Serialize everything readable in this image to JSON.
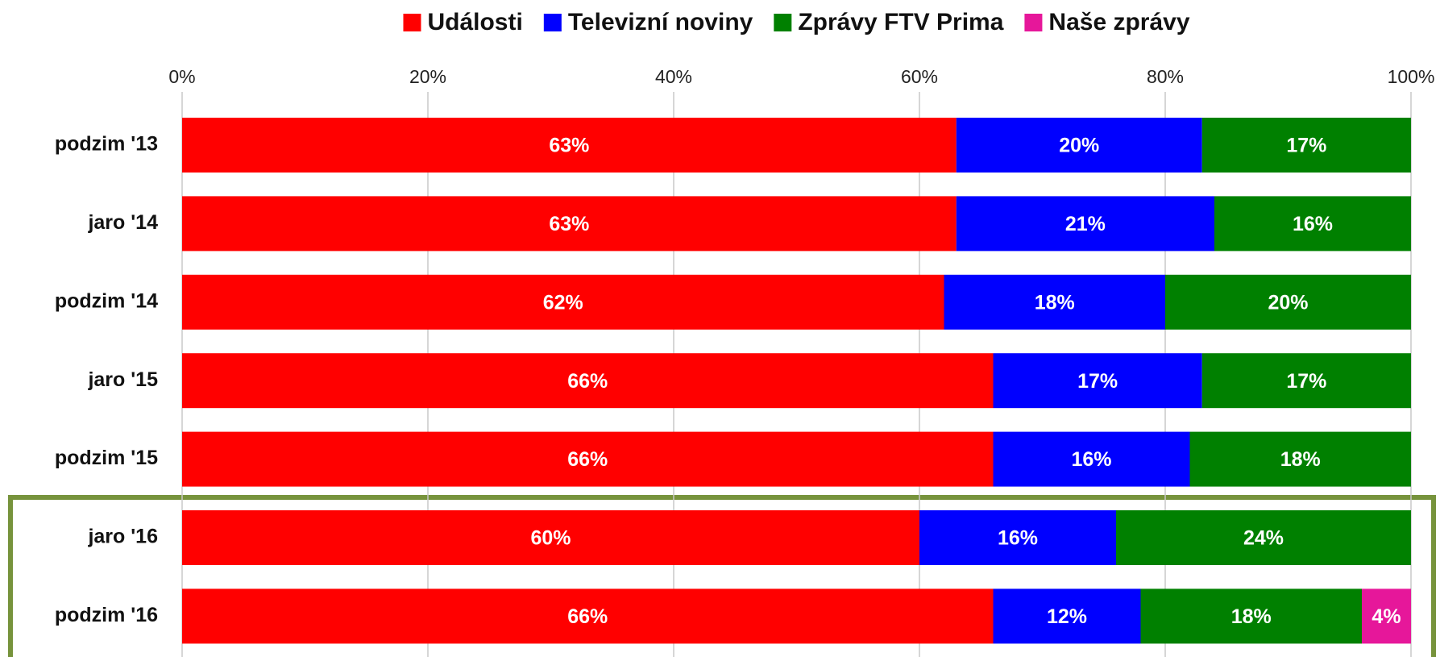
{
  "chart_data": {
    "type": "stacked-barh",
    "categories": [
      "podzim '13",
      "jaro '14",
      "podzim '14",
      "jaro '15",
      "podzim '15",
      "jaro '16",
      "podzim '16"
    ],
    "series": [
      {
        "name": "Události",
        "color": "#ff0000",
        "values": [
          63,
          63,
          62,
          66,
          66,
          60,
          66
        ],
        "value_labels": [
          "63%",
          "63%",
          "62%",
          "66%",
          "66%",
          "60%",
          "66%"
        ]
      },
      {
        "name": "Televizní noviny",
        "color": "#0000ff",
        "values": [
          20,
          21,
          18,
          17,
          16,
          16,
          12
        ],
        "value_labels": [
          "20%",
          "21%",
          "18%",
          "17%",
          "16%",
          "16%",
          "12%"
        ]
      },
      {
        "name": "Zprávy FTV Prima",
        "color": "#008000",
        "values": [
          17,
          16,
          20,
          17,
          18,
          24,
          18
        ],
        "value_labels": [
          "17%",
          "16%",
          "20%",
          "17%",
          "18%",
          "24%",
          "18%"
        ]
      },
      {
        "name": "Naše zprávy",
        "color": "#e6179a",
        "values": [
          null,
          null,
          null,
          null,
          null,
          null,
          4
        ],
        "value_labels": [
          null,
          null,
          null,
          null,
          null,
          null,
          "4%"
        ]
      }
    ],
    "xlim": [
      0,
      100
    ],
    "xticks": [
      {
        "value": 0,
        "label": "0%"
      },
      {
        "value": 20,
        "label": "20%"
      },
      {
        "value": 40,
        "label": "40%"
      },
      {
        "value": 60,
        "label": "60%"
      },
      {
        "value": 80,
        "label": "80%"
      },
      {
        "value": 100,
        "label": "100%"
      }
    ],
    "grid": true,
    "legend": "top"
  }
}
